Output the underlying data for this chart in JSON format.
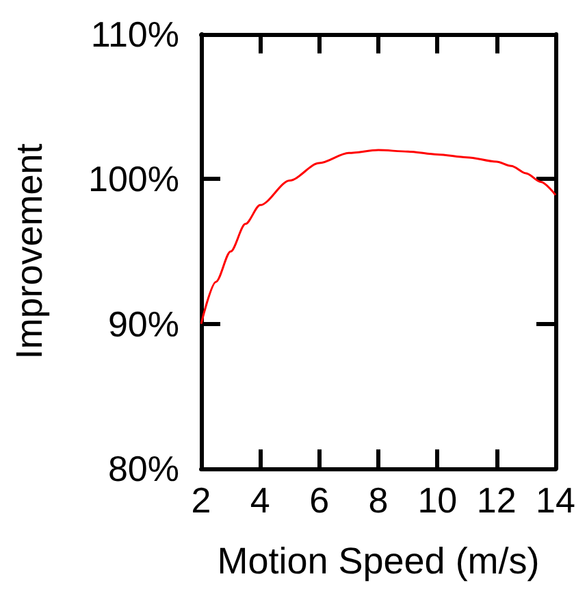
{
  "chart_data": {
    "type": "line",
    "xlabel": "Motion Speed (m/s)",
    "ylabel": "Improvement",
    "x": [
      2,
      2.5,
      3,
      3.5,
      4,
      5,
      6,
      7,
      8,
      9,
      10,
      11,
      12,
      12.5,
      13,
      13.5,
      14
    ],
    "series": [
      {
        "color": "#ff0000",
        "values": [
          90,
          92.9,
          95,
          96.9,
          98.2,
          99.9,
          101.1,
          101.8,
          102,
          101.9,
          101.7,
          101.5,
          101.2,
          100.9,
          100.4,
          99.8,
          98.9
        ]
      }
    ],
    "xlim": [
      2,
      14
    ],
    "xticks": [
      2,
      4,
      6,
      8,
      10,
      12,
      14
    ],
    "ylim": [
      80,
      110
    ],
    "yticks": [
      {
        "value": 80,
        "label": "80%"
      },
      {
        "value": 90,
        "label": "90%"
      },
      {
        "value": 100,
        "label": "100%"
      },
      {
        "value": 110,
        "label": "110%"
      }
    ],
    "grid": false,
    "marker": "none",
    "line_style": "solid"
  }
}
